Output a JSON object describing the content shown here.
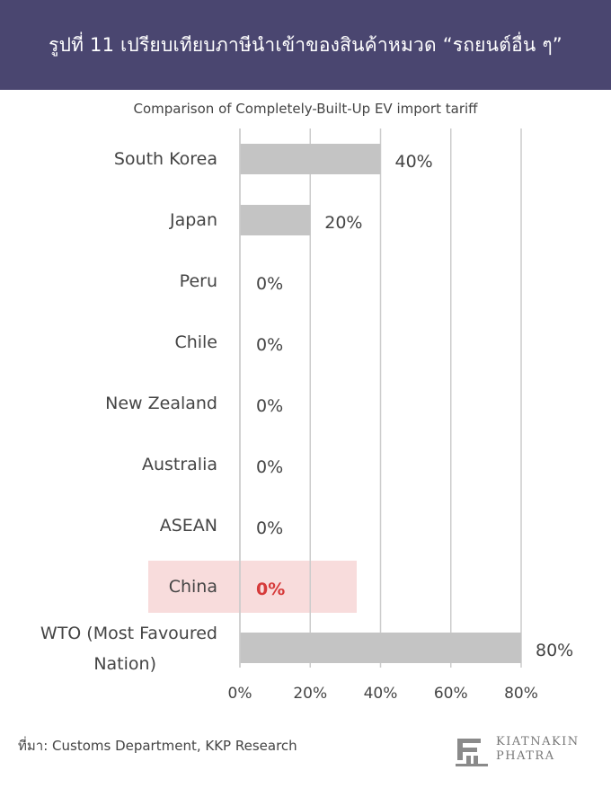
{
  "header": {
    "title": "รูปที่ 11 เปรียบเทียบภาษีนำเข้าของสินค้าหมวด “รถยนต์อื่น ๆ”"
  },
  "chart_data": {
    "type": "bar",
    "orientation": "horizontal",
    "title": "Comparison of Completely-Built-Up EV import tariff",
    "categories": [
      "South Korea",
      "Japan",
      "Peru",
      "Chile",
      "New Zealand",
      "Australia",
      "ASEAN",
      "China",
      "WTO (Most Favoured Nation)"
    ],
    "values": [
      40,
      20,
      0,
      0,
      0,
      0,
      0,
      0,
      80
    ],
    "data_labels": [
      "40%",
      "20%",
      "0%",
      "0%",
      "0%",
      "0%",
      "0%",
      "0%",
      "80%"
    ],
    "x_ticks": [
      "0%",
      "20%",
      "40%",
      "60%",
      "80%"
    ],
    "xlim": [
      0,
      80
    ],
    "grid": true,
    "highlight_category": "China",
    "colors": {
      "bar": "#c4c4c4",
      "grid": "#cccccc",
      "highlight_bg": "#f8dcdc",
      "highlight_text": "#d63a3a"
    }
  },
  "source": {
    "text": "ที่มา: Customs Department, KKP Research"
  },
  "logo": {
    "line1": "KIATNAKIN",
    "line2": "PHATRA",
    "icon": "building-columns-icon"
  }
}
